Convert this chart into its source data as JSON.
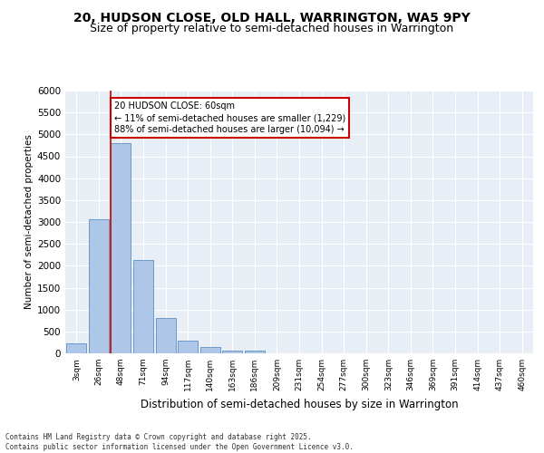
{
  "title_line1": "20, HUDSON CLOSE, OLD HALL, WARRINGTON, WA5 9PY",
  "title_line2": "Size of property relative to semi-detached houses in Warrington",
  "xlabel": "Distribution of semi-detached houses by size in Warrington",
  "ylabel": "Number of semi-detached properties",
  "categories": [
    "3sqm",
    "26sqm",
    "48sqm",
    "71sqm",
    "94sqm",
    "117sqm",
    "140sqm",
    "163sqm",
    "186sqm",
    "209sqm",
    "231sqm",
    "254sqm",
    "277sqm",
    "300sqm",
    "323sqm",
    "346sqm",
    "369sqm",
    "391sqm",
    "414sqm",
    "437sqm",
    "460sqm"
  ],
  "values": [
    230,
    3060,
    4800,
    2130,
    800,
    300,
    140,
    70,
    60,
    0,
    0,
    0,
    0,
    0,
    0,
    0,
    0,
    0,
    0,
    0,
    0
  ],
  "bar_color": "#aec6e8",
  "bar_edge_color": "#5a8fc4",
  "property_bin_index": 2,
  "vline_color": "#cc0000",
  "annotation_text": "20 HUDSON CLOSE: 60sqm\n← 11% of semi-detached houses are smaller (1,229)\n88% of semi-detached houses are larger (10,094) →",
  "annotation_box_color": "#cc0000",
  "ylim": [
    0,
    6000
  ],
  "yticks": [
    0,
    500,
    1000,
    1500,
    2000,
    2500,
    3000,
    3500,
    4000,
    4500,
    5000,
    5500,
    6000
  ],
  "bg_color": "#e8eef6",
  "footer_text": "Contains HM Land Registry data © Crown copyright and database right 2025.\nContains public sector information licensed under the Open Government Licence v3.0.",
  "title_fontsize": 10,
  "subtitle_fontsize": 9
}
